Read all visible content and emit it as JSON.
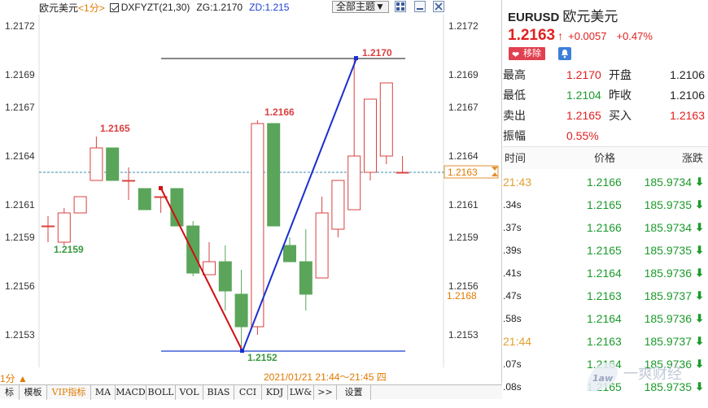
{
  "header": {
    "title": "欧元美元",
    "period": "<1分>",
    "indicator": "DXFYZT(21,30)",
    "zg": "ZG:1.2170",
    "zd": "ZD:1.215",
    "theme_button": "全部主题▼"
  },
  "chart": {
    "date_range": "2021/01/21 21:44～21:45 四",
    "fen_label": "1分 ▲",
    "y_ticks": [
      "1.2172",
      "1.2169",
      "1.2167",
      "1.2164",
      "1.2161",
      "1.2159",
      "1.2156",
      "1.2153"
    ],
    "price_tags": {
      "current": "1.2163",
      "secondary": "1.2168"
    },
    "annotations": {
      "high_top": "1.2170",
      "low_bottom": "1.2152",
      "peak_left": "1.2165",
      "peak_mid": "1.2166",
      "low_left": "1.2159"
    }
  },
  "chart_data": {
    "type": "candlestick",
    "title": "欧元美元",
    "ylim": [
      1.2151,
      1.2173
    ],
    "candles": [
      {
        "o": 1.21597,
        "c": 1.21597,
        "h": 1.21603,
        "l": 1.21587
      },
      {
        "o": 1.21587,
        "c": 1.21605,
        "h": 1.21608,
        "l": 1.21585
      },
      {
        "o": 1.21605,
        "c": 1.21615,
        "h": 1.21615,
        "l": 1.21605
      },
      {
        "o": 1.21625,
        "c": 1.21645,
        "h": 1.21652,
        "l": 1.21625
      },
      {
        "o": 1.21645,
        "c": 1.21625,
        "h": 1.21645,
        "l": 1.21625
      },
      {
        "o": 1.21625,
        "c": 1.21625,
        "h": 1.21633,
        "l": 1.21613
      },
      {
        "o": 1.2162,
        "c": 1.21607,
        "h": 1.2162,
        "l": 1.21607
      },
      {
        "o": 1.21615,
        "c": 1.21615,
        "h": 1.21615,
        "l": 1.21605
      },
      {
        "o": 1.2162,
        "c": 1.21597,
        "h": 1.2162,
        "l": 1.21597
      },
      {
        "o": 1.21597,
        "c": 1.21568,
        "h": 1.216,
        "l": 1.21566
      },
      {
        "o": 1.21567,
        "c": 1.21575,
        "h": 1.21587,
        "l": 1.21567
      },
      {
        "o": 1.21575,
        "c": 1.21557,
        "h": 1.21585,
        "l": 1.21545
      },
      {
        "o": 1.21555,
        "c": 1.21535,
        "h": 1.2157,
        "l": 1.21522
      },
      {
        "o": 1.21535,
        "c": 1.2166,
        "h": 1.21662,
        "l": 1.2153
      },
      {
        "o": 1.2166,
        "c": 1.21597,
        "h": 1.2166,
        "l": 1.21597
      },
      {
        "o": 1.21585,
        "c": 1.21575,
        "h": 1.2159,
        "l": 1.21575
      },
      {
        "o": 1.21575,
        "c": 1.21555,
        "h": 1.21595,
        "l": 1.21545
      },
      {
        "o": 1.21565,
        "c": 1.21605,
        "h": 1.21615,
        "l": 1.21565
      },
      {
        "o": 1.21595,
        "c": 1.21625,
        "h": 1.21625,
        "l": 1.2159
      },
      {
        "o": 1.21607,
        "c": 1.2164,
        "h": 1.217,
        "l": 1.21607
      },
      {
        "o": 1.2163,
        "c": 1.21675,
        "h": 1.21675,
        "l": 1.21625
      },
      {
        "o": 1.2164,
        "c": 1.21685,
        "h": 1.21685,
        "l": 1.21635
      },
      {
        "o": 1.2163,
        "c": 1.2163,
        "h": 1.2164,
        "l": 1.2163
      }
    ],
    "lines": {
      "zg": 1.217,
      "zd": 1.2152,
      "current": 1.2163
    }
  },
  "tabs": [
    "标",
    "模板",
    "VIP指标",
    "MA",
    "MACD",
    "BOLL",
    "VOL",
    "BIAS",
    "CCI",
    "KDJ",
    "LW&",
    ">>",
    "设置"
  ],
  "quote": {
    "symbol": "EURUSD",
    "name": "欧元美元",
    "price": "1.2163",
    "arrow": "↑",
    "change": "+0.0057",
    "percent": "+0.47%",
    "remove_label": "移除",
    "stats": [
      {
        "l1": "最高",
        "v1": "1.2170",
        "c1": "red",
        "l2": "开盘",
        "v2": "1.2106",
        "c2": "blk"
      },
      {
        "l1": "最低",
        "v1": "1.2104",
        "c1": "green",
        "l2": "昨收",
        "v2": "1.2106",
        "c2": "blk"
      },
      {
        "l1": "卖出",
        "v1": "1.2165",
        "c1": "red",
        "l2": "买入",
        "v2": "1.2163",
        "c2": "red"
      },
      {
        "l1": "振幅",
        "v1": "0.55%",
        "c1": "red",
        "l2": "",
        "v2": "",
        "c2": "blk"
      }
    ]
  },
  "ticks": {
    "headers": {
      "time": "时间",
      "price": "价格",
      "change": "涨跌"
    },
    "rows": [
      {
        "time": "21:43",
        "major": true,
        "price": "1.2166",
        "chg": "185.9734"
      },
      {
        "time": ".34s",
        "major": false,
        "price": "1.2165",
        "chg": "185.9735"
      },
      {
        "time": ".37s",
        "major": false,
        "price": "1.2166",
        "chg": "185.9734"
      },
      {
        "time": ".39s",
        "major": false,
        "price": "1.2165",
        "chg": "185.9735"
      },
      {
        "time": ".41s",
        "major": false,
        "price": "1.2164",
        "chg": "185.9736"
      },
      {
        "time": ".47s",
        "major": false,
        "price": "1.2163",
        "chg": "185.9737"
      },
      {
        "time": ".58s",
        "major": false,
        "price": "1.2164",
        "chg": "185.9736"
      },
      {
        "time": "21:44",
        "major": true,
        "price": "1.2163",
        "chg": "185.9737"
      },
      {
        "time": ".07s",
        "major": false,
        "price": "1.2164",
        "chg": "185.9736"
      },
      {
        "time": ".08s",
        "major": false,
        "price": "1.2165",
        "chg": "185.9735"
      }
    ]
  },
  "watermark": "一爽财经",
  "colors": {
    "up": "#d94040",
    "down": "#5aa55a",
    "accent": "#e07a00",
    "blue": "#1a3fcf"
  }
}
